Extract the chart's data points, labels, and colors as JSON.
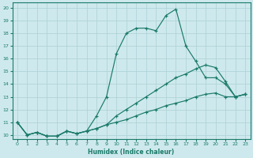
{
  "xlabel": "Humidex (Indice chaleur)",
  "background_color": "#cee9ed",
  "grid_color": "#b0d4d8",
  "line_color": "#1a7a6a",
  "xlim_min": -0.5,
  "xlim_max": 23.5,
  "ylim_min": 9.7,
  "ylim_max": 20.4,
  "xticks": [
    0,
    1,
    2,
    3,
    4,
    5,
    6,
    7,
    8,
    9,
    10,
    11,
    12,
    13,
    14,
    15,
    16,
    17,
    18,
    19,
    20,
    21,
    22,
    23
  ],
  "yticks": [
    10,
    11,
    12,
    13,
    14,
    15,
    16,
    17,
    18,
    19,
    20
  ],
  "line1_x": [
    0,
    1,
    2,
    3,
    4,
    5,
    6,
    7,
    8,
    9,
    10,
    11,
    12,
    13,
    14,
    15,
    16,
    17,
    18,
    19,
    20,
    21,
    22,
    23
  ],
  "line1_y": [
    11,
    10,
    10.2,
    9.9,
    9.9,
    10.3,
    10.1,
    10.3,
    10.5,
    10.8,
    11.0,
    11.2,
    11.5,
    11.8,
    12.0,
    12.3,
    12.5,
    12.7,
    13.0,
    13.2,
    13.3,
    13.0,
    13.0,
    13.2
  ],
  "line2_x": [
    0,
    1,
    2,
    3,
    4,
    5,
    6,
    7,
    8,
    9,
    10,
    11,
    12,
    13,
    14,
    15,
    16,
    17,
    18,
    19,
    20,
    21,
    22,
    23
  ],
  "line2_y": [
    11,
    10,
    10.2,
    9.9,
    9.9,
    10.3,
    10.1,
    10.3,
    11.5,
    13.0,
    16.4,
    18.0,
    18.4,
    18.4,
    18.2,
    19.4,
    19.9,
    17.0,
    15.8,
    14.5,
    14.5,
    14.0,
    13.0,
    13.2
  ],
  "line3_x": [
    0,
    1,
    2,
    3,
    4,
    5,
    6,
    7,
    8,
    9,
    10,
    11,
    12,
    13,
    14,
    15,
    16,
    17,
    18,
    19,
    20,
    21,
    22,
    23
  ],
  "line3_y": [
    11,
    10,
    10.2,
    9.9,
    9.9,
    10.3,
    10.1,
    10.3,
    10.5,
    10.8,
    11.5,
    12.0,
    12.5,
    13.0,
    13.5,
    14.0,
    14.5,
    14.8,
    15.2,
    15.5,
    15.3,
    14.2,
    13.0,
    13.2
  ]
}
